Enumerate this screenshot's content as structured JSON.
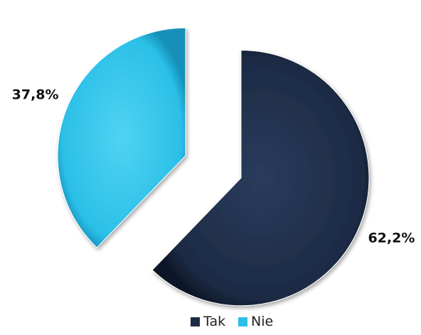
{
  "chart_data": {
    "type": "pie",
    "title": "",
    "legend_position": "bottom",
    "slices": [
      {
        "label": "Tak",
        "value": 62.2,
        "value_label": "62,2%",
        "color": "#1c2b45"
      },
      {
        "label": "Nie",
        "value": 37.8,
        "value_label": "37,8%",
        "color": "#2bbfe7"
      }
    ]
  }
}
